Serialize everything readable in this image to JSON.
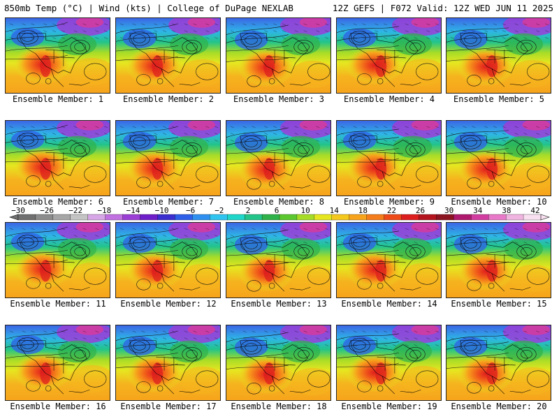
{
  "header": {
    "left": "850mb Temp (°C) | Wind (kts) | College of DuPage NEXLAB",
    "right": "12Z GEFS | F072 Valid: 12Z WED JUN 11 2025"
  },
  "panels": [
    {
      "label": "Ensemble Member: 1"
    },
    {
      "label": "Ensemble Member: 2"
    },
    {
      "label": "Ensemble Member: 3"
    },
    {
      "label": "Ensemble Member: 4"
    },
    {
      "label": "Ensemble Member: 5"
    },
    {
      "label": "Ensemble Member: 6"
    },
    {
      "label": "Ensemble Member: 7"
    },
    {
      "label": "Ensemble Member: 8"
    },
    {
      "label": "Ensemble Member: 9"
    },
    {
      "label": "Ensemble Member: 10"
    },
    {
      "label": "Ensemble Member: 11"
    },
    {
      "label": "Ensemble Member: 12"
    },
    {
      "label": "Ensemble Member: 13"
    },
    {
      "label": "Ensemble Member: 14"
    },
    {
      "label": "Ensemble Member: 15"
    },
    {
      "label": "Ensemble Member: 16"
    },
    {
      "label": "Ensemble Member: 17"
    },
    {
      "label": "Ensemble Member: 18"
    },
    {
      "label": "Ensemble Member: 19"
    },
    {
      "label": "Ensemble Member: 20"
    }
  ],
  "colorbar": {
    "ticks": [
      "−30",
      "−26",
      "−22",
      "−18",
      "−14",
      "−10",
      "−6",
      "−2",
      "2",
      "6",
      "10",
      "14",
      "18",
      "22",
      "26",
      "30",
      "34",
      "38",
      "42"
    ],
    "colors": [
      "#707070",
      "#8c8c8c",
      "#a6a6a6",
      "#c4c4c4",
      "#d7a6e6",
      "#c070e0",
      "#9a3ed6",
      "#6f1fc9",
      "#3b2fd0",
      "#2e5fe8",
      "#2f8ff0",
      "#2fc3f0",
      "#20d6c8",
      "#23c48a",
      "#2fb24a",
      "#5cc830",
      "#a6dc28",
      "#e6e620",
      "#f5c81e",
      "#f7a41c",
      "#f47c1a",
      "#ee4a18",
      "#dc1e1e",
      "#b4141e",
      "#8c1420",
      "#b01a6e",
      "#d23ca0",
      "#e878c8",
      "#f0b4e0",
      "#f8e0f0"
    ]
  }
}
